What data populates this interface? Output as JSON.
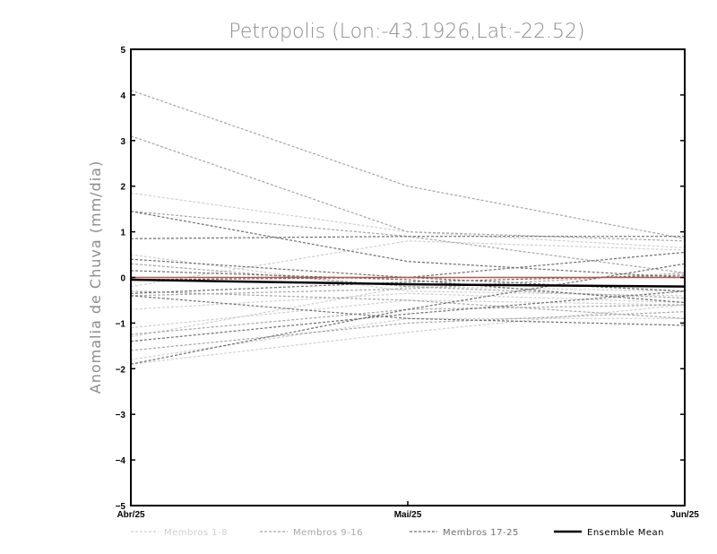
{
  "chart_data": {
    "type": "line",
    "title": "Petropolis (Lon:-43.1926,Lat:-22.52)",
    "ylabel": "Anomalia de Chuva (mm/dia)",
    "xlabel": "",
    "categories": [
      "Abr/25",
      "Mai/25",
      "Jun/25"
    ],
    "ylim": [
      -5,
      5
    ],
    "yticks": [
      -5,
      -4,
      -3,
      -2,
      -1,
      0,
      1,
      2,
      3,
      4,
      5
    ],
    "grid": false,
    "legend_position": "bottom",
    "groups": [
      {
        "name": "Membros 1-8",
        "color": "#cfcfcf",
        "style": "dashed"
      },
      {
        "name": "Membros 9-16",
        "color": "#a6a6a6",
        "style": "dashed"
      },
      {
        "name": "Membros 17-25",
        "color": "#6e6e6e",
        "style": "dashed"
      },
      {
        "name": "Ensemble Mean",
        "color": "#000000",
        "style": "solid"
      }
    ],
    "series": [
      {
        "group": 0,
        "values": [
          1.85,
          1.0,
          0.65
        ]
      },
      {
        "group": 0,
        "values": [
          -1.9,
          -1.2,
          -0.6
        ]
      },
      {
        "group": 0,
        "values": [
          -1.8,
          -0.9,
          -0.9
        ]
      },
      {
        "group": 0,
        "values": [
          -1.1,
          -0.5,
          -0.6
        ]
      },
      {
        "group": 0,
        "values": [
          0.5,
          -0.3,
          -0.4
        ]
      },
      {
        "group": 0,
        "values": [
          -0.7,
          -0.35,
          -0.55
        ]
      },
      {
        "group": 0,
        "values": [
          -1.3,
          -0.2,
          -0.3
        ]
      },
      {
        "group": 0,
        "values": [
          -0.2,
          0.8,
          0.6
        ]
      },
      {
        "group": 1,
        "values": [
          4.1,
          2.0,
          0.85
        ]
      },
      {
        "group": 1,
        "values": [
          3.1,
          1.0,
          0.8
        ]
      },
      {
        "group": 1,
        "values": [
          1.45,
          0.9,
          0.1
        ]
      },
      {
        "group": 1,
        "values": [
          -1.25,
          -0.7,
          -0.6
        ]
      },
      {
        "group": 1,
        "values": [
          0.3,
          -0.2,
          -0.45
        ]
      },
      {
        "group": 1,
        "values": [
          -0.3,
          -0.5,
          -0.9
        ]
      },
      {
        "group": 1,
        "values": [
          -0.4,
          -0.25,
          0.1
        ]
      },
      {
        "group": 1,
        "values": [
          -1.6,
          -1.0,
          -0.75
        ]
      },
      {
        "group": 2,
        "values": [
          1.45,
          0.35,
          0.0
        ]
      },
      {
        "group": 2,
        "values": [
          0.85,
          0.9,
          0.9
        ]
      },
      {
        "group": 2,
        "values": [
          0.4,
          0.0,
          -0.3
        ]
      },
      {
        "group": 2,
        "values": [
          0.15,
          -0.05,
          -0.55
        ]
      },
      {
        "group": 2,
        "values": [
          -0.05,
          0.0,
          0.55
        ]
      },
      {
        "group": 2,
        "values": [
          -0.4,
          -0.9,
          -1.05
        ]
      },
      {
        "group": 2,
        "values": [
          -1.9,
          -0.7,
          0.3
        ]
      },
      {
        "group": 2,
        "values": [
          -1.4,
          -0.8,
          -0.3
        ]
      },
      {
        "group": 2,
        "values": [
          -0.35,
          -0.1,
          0.05
        ]
      }
    ],
    "reference_line": {
      "y": 0,
      "color": "#e04040"
    },
    "ensemble_mean": [
      -0.05,
      -0.15,
      -0.2
    ]
  }
}
